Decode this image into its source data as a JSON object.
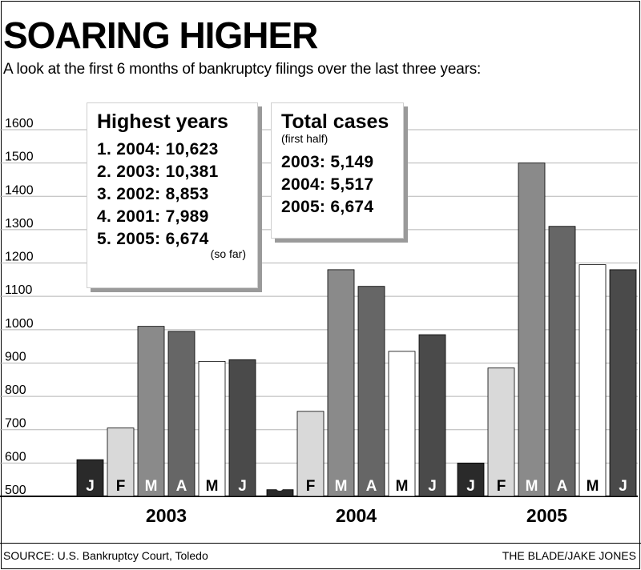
{
  "title": "SOARING HIGHER",
  "subtitle": "A look at the first 6 months of bankruptcy filings over the last three years:",
  "highest_years": {
    "heading": "Highest years",
    "items": [
      "1. 2004: 10,623",
      "2. 2003: 10,381",
      "3. 2002: 8,853",
      "4. 2001: 7,989",
      "5. 2005: 6,674"
    ],
    "note": "(so far)"
  },
  "total_cases": {
    "heading": "Total cases",
    "subheading": "(first half)",
    "items": [
      "2003: 5,149",
      "2004: 5,517",
      "2005: 6,674"
    ]
  },
  "source": "SOURCE: U.S. Bankruptcy Court, Toledo",
  "credit": "THE BLADE/JAKE JONES",
  "colors": {
    "J1": "#2a2a2a",
    "F": "#d9d9d9",
    "M1": "#8a8a8a",
    "A": "#666666",
    "M2": "#ffffff",
    "J2": "#4a4a4a",
    "grid": "#b5b5b5"
  },
  "chart_data": {
    "type": "bar",
    "y_ticks": [
      "1600",
      "1500",
      "1400",
      "1300",
      "1200",
      "1100",
      "1000",
      "900",
      "800",
      "700",
      "600",
      "500"
    ],
    "ylim": [
      500,
      1600
    ],
    "grid": true,
    "groups": [
      {
        "label": "2003",
        "bars": [
          {
            "month": "J",
            "value": 610,
            "color_key": "J1"
          },
          {
            "month": "F",
            "value": 705,
            "color_key": "F"
          },
          {
            "month": "M",
            "value": 1010,
            "color_key": "M1"
          },
          {
            "month": "A",
            "value": 995,
            "color_key": "A"
          },
          {
            "month": "M",
            "value": 905,
            "color_key": "M2"
          },
          {
            "month": "J",
            "value": 910,
            "color_key": "J2"
          }
        ]
      },
      {
        "label": "2004",
        "bars": [
          {
            "month": "J",
            "value": 520,
            "color_key": "J1"
          },
          {
            "month": "F",
            "value": 755,
            "color_key": "F"
          },
          {
            "month": "M",
            "value": 1180,
            "color_key": "M1"
          },
          {
            "month": "A",
            "value": 1130,
            "color_key": "A"
          },
          {
            "month": "M",
            "value": 935,
            "color_key": "M2"
          },
          {
            "month": "J",
            "value": 985,
            "color_key": "J2"
          }
        ]
      },
      {
        "label": "2005",
        "bars": [
          {
            "month": "J",
            "value": 600,
            "color_key": "J1"
          },
          {
            "month": "F",
            "value": 885,
            "color_key": "F"
          },
          {
            "month": "M",
            "value": 1500,
            "color_key": "M1"
          },
          {
            "month": "A",
            "value": 1310,
            "color_key": "A"
          },
          {
            "month": "M",
            "value": 1195,
            "color_key": "M2"
          },
          {
            "month": "J",
            "value": 1180,
            "color_key": "J2"
          }
        ]
      }
    ]
  }
}
